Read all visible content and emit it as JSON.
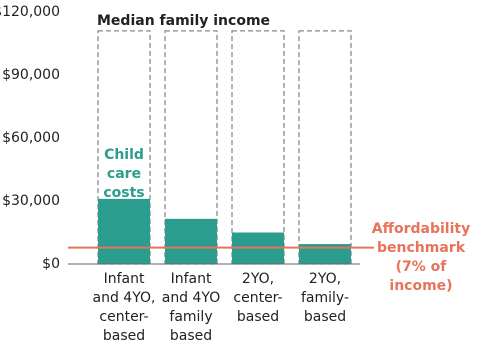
{
  "chart_data": {
    "type": "bar",
    "categories": [
      [
        "Infant",
        "and 4YO,",
        "center-",
        "based"
      ],
      [
        "Infant",
        "and 4YO",
        "family",
        "based"
      ],
      [
        "2YO,",
        "center-",
        "based"
      ],
      [
        "2YO,",
        "family-",
        "based"
      ]
    ],
    "series": [
      {
        "name": "Median family income",
        "color": "#8a8a8a",
        "style": "dashed",
        "values": [
          111000,
          111000,
          111000,
          111000
        ]
      },
      {
        "name": "Child care costs",
        "color": "#2a9d8f",
        "values": [
          31000,
          21500,
          15000,
          9500
        ]
      }
    ],
    "benchmark": {
      "value": 7800,
      "label": "Affordability benchmark (7% of income)",
      "color": "#e8735a"
    },
    "ylim": [
      0,
      120000
    ],
    "yticks": [
      {
        "value": 0,
        "label": "$0"
      },
      {
        "value": 30000,
        "label": "$30,000"
      },
      {
        "value": 60000,
        "label": "$60,000"
      },
      {
        "value": 90000,
        "label": "$90,000"
      },
      {
        "value": 120000,
        "label": "$120,000"
      }
    ],
    "grid": false
  }
}
